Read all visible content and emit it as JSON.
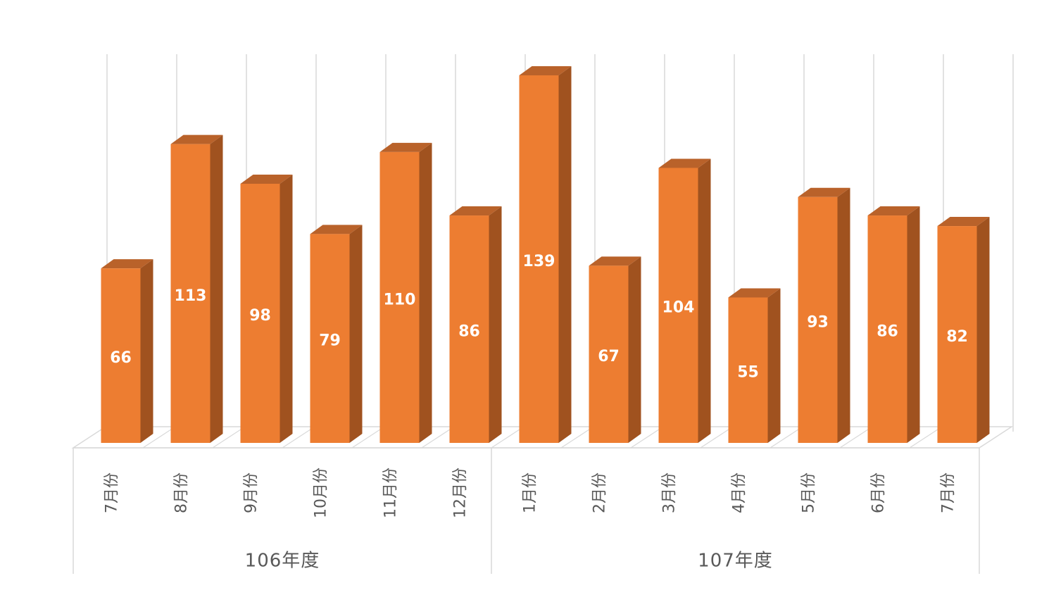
{
  "chart_data": {
    "type": "bar",
    "style": "3d-column",
    "color": "#ED7D31",
    "side_color": "#A0521F",
    "top_color": "#B9622A",
    "grid": true,
    "ylim": [
      0,
      150
    ],
    "categories": [
      "7月份",
      "8月份",
      "9月份",
      "10月份",
      "11月份",
      "12月份",
      "1月份",
      "2月份",
      "3月份",
      "4月份",
      "5月份",
      "6月份",
      "7月份"
    ],
    "values": [
      66,
      113,
      98,
      79,
      110,
      86,
      139,
      67,
      104,
      55,
      93,
      86,
      82
    ],
    "groups": [
      {
        "label": "106年度",
        "count": 6
      },
      {
        "label": "107年度",
        "count": 7
      }
    ]
  }
}
